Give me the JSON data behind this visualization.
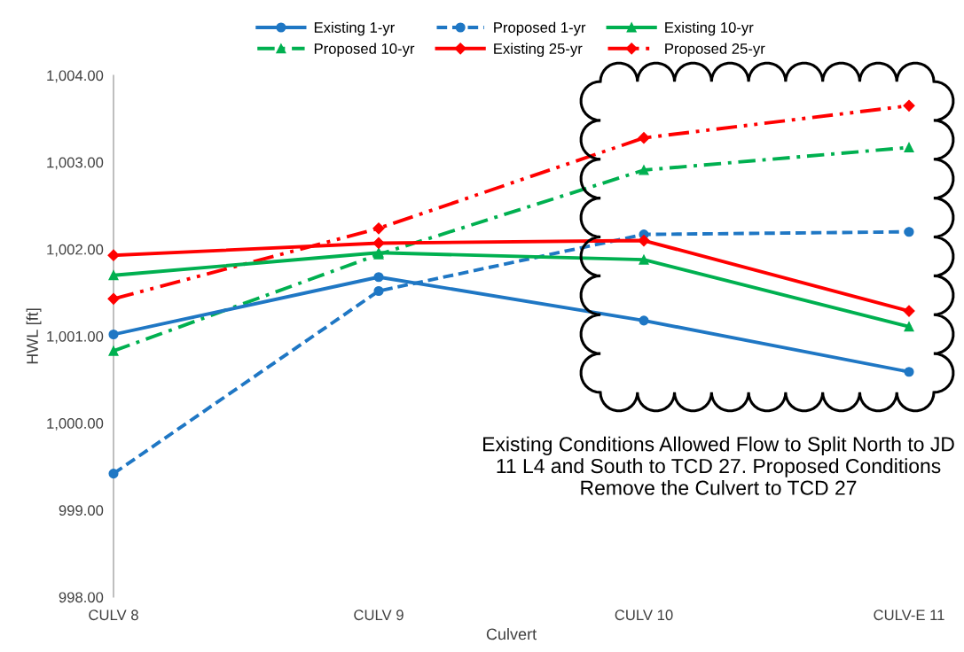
{
  "chart_data": {
    "type": "line",
    "xlabel": "Culvert",
    "ylabel": "HWL [ft]",
    "categories": [
      "CULV 8",
      "CULV 9",
      "CULV 10",
      "CULV-E 11"
    ],
    "series": [
      {
        "name": "Existing 1-yr",
        "color": "#1f77c4",
        "line_style": "solid",
        "marker": "circle",
        "values": [
          1001.02,
          1001.68,
          1001.18,
          1000.59
        ]
      },
      {
        "name": "Proposed 1-yr",
        "color": "#1f77c4",
        "line_style": "dashed",
        "marker": "circle",
        "values": [
          999.42,
          1001.52,
          1002.17,
          1002.2
        ]
      },
      {
        "name": "Existing 10-yr",
        "color": "#00b050",
        "line_style": "solid",
        "marker": "triangle",
        "values": [
          1001.7,
          1001.96,
          1001.88,
          1001.11
        ]
      },
      {
        "name": "Proposed 10-yr",
        "color": "#00b050",
        "line_style": "dashdot",
        "marker": "triangle",
        "values": [
          1000.83,
          1001.94,
          1002.91,
          1003.17
        ]
      },
      {
        "name": "Existing 25-yr",
        "color": "#ff0000",
        "line_style": "solid",
        "marker": "diamond",
        "values": [
          1001.93,
          1002.07,
          1002.1,
          1001.29
        ]
      },
      {
        "name": "Proposed 25-yr",
        "color": "#ff0000",
        "line_style": "dashdotdot",
        "marker": "diamond",
        "values": [
          1001.43,
          1002.24,
          1003.28,
          1003.65
        ]
      }
    ],
    "ylim": [
      998,
      1004
    ],
    "yticks": [
      {
        "value": 998,
        "label": "998.00"
      },
      {
        "value": 999,
        "label": "999.00"
      },
      {
        "value": 1000,
        "label": "1,000.00"
      },
      {
        "value": 1001,
        "label": "1,001.00"
      },
      {
        "value": 1002,
        "label": "1,002.00"
      },
      {
        "value": 1003,
        "label": "1,003.00"
      },
      {
        "value": 1004,
        "label": "1,004.00"
      }
    ],
    "grid": false,
    "legend": "top",
    "annotations": [
      "Existing Conditions Allowed Flow to Split North to JD 11 L4 and South to TCD 27. Proposed Conditions Remove the Culvert to TCD 27"
    ]
  }
}
